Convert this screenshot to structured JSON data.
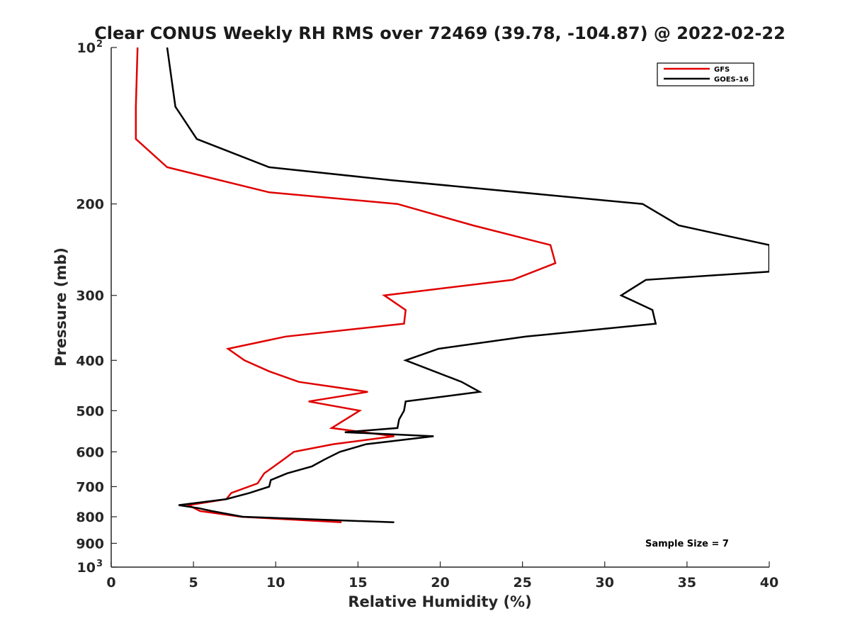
{
  "chart_data": {
    "type": "line",
    "title": "Clear CONUS Weekly RH RMS over 72469 (39.78, -104.87) @ 2022-02-22",
    "xlabel": "Relative Humidity (%)",
    "ylabel": "Pressure (mb)",
    "xlim": [
      0,
      40
    ],
    "ylim": [
      1000,
      100
    ],
    "y_scale": "log",
    "y_reversed": true,
    "x_ticks": [
      "0",
      "5",
      "10",
      "15",
      "20",
      "25",
      "30",
      "35",
      "40"
    ],
    "x_tick_values": [
      0,
      5,
      10,
      15,
      20,
      25,
      30,
      35,
      40
    ],
    "y_ticks": [
      {
        "value": 100,
        "label": "10",
        "sup": "2"
      },
      {
        "value": 200,
        "label": "200"
      },
      {
        "value": 300,
        "label": "300"
      },
      {
        "value": 400,
        "label": "400"
      },
      {
        "value": 500,
        "label": "500"
      },
      {
        "value": 600,
        "label": "600"
      },
      {
        "value": 700,
        "label": "700"
      },
      {
        "value": 800,
        "label": "800"
      },
      {
        "value": 900,
        "label": "900"
      },
      {
        "value": 1000,
        "label": "10",
        "sup": "3"
      }
    ],
    "grid": false,
    "legend_position": "top-right",
    "annotation": "Sample Size = 7",
    "series": [
      {
        "name": "GFS",
        "color": "#e00000",
        "x": [
          1.6,
          1.5,
          1.5,
          3.4,
          9.6,
          17.4,
          22.0,
          26.7,
          27.0,
          24.4,
          16.6,
          17.9,
          17.8,
          10.6,
          7.1,
          8.1,
          9.6,
          11.4,
          15.6,
          12.0,
          15.1,
          13.4,
          17.2,
          13.5,
          11.1,
          10.5,
          9.9,
          9.3,
          8.9,
          7.3,
          7.0,
          4.7,
          5.4,
          7.9,
          14.0
        ],
        "y": [
          100,
          130,
          150,
          170,
          190,
          200,
          220,
          240,
          260,
          280,
          300,
          320,
          340,
          360,
          380,
          400,
          420,
          440,
          460,
          480,
          500,
          540,
          560,
          580,
          600,
          620,
          640,
          660,
          690,
          720,
          740,
          760,
          780,
          800,
          820
        ]
      },
      {
        "name": "GOES-16",
        "color": "#000000",
        "x": [
          3.4,
          3.9,
          5.2,
          9.6,
          17.0,
          32.3,
          34.5,
          40.0,
          40.0,
          32.5,
          31.0,
          32.9,
          33.1,
          25.2,
          19.9,
          17.9,
          21.3,
          22.4,
          17.9,
          17.8,
          17.5,
          17.4,
          14.2,
          19.6,
          15.5,
          13.9,
          13.0,
          12.2,
          10.7,
          9.7,
          9.6,
          8.4,
          7.0,
          4.1,
          5.3,
          6.1,
          8.0,
          17.2
        ],
        "y": [
          100,
          130,
          150,
          170,
          180,
          200,
          220,
          240,
          270,
          280,
          300,
          320,
          340,
          360,
          380,
          400,
          440,
          460,
          480,
          500,
          520,
          540,
          550,
          560,
          580,
          600,
          620,
          640,
          660,
          680,
          700,
          720,
          740,
          760,
          770,
          780,
          800,
          820
        ]
      }
    ]
  }
}
